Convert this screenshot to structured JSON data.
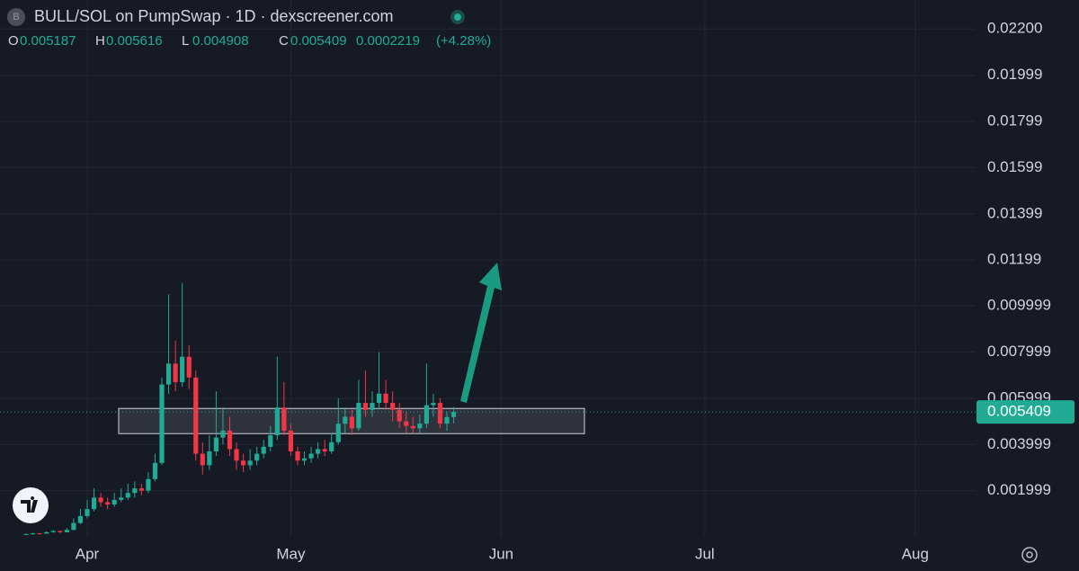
{
  "symbol_icon": "B",
  "title": "BULL/SOL on PumpSwap · 1D · dexscreener.com",
  "ohlc_letters": [
    "O",
    "H",
    "L",
    "C"
  ],
  "change": 0.0002219,
  "change_pct": {
    "value": 4.28,
    "label": "(+4.28%)"
  },
  "chart_data": {
    "type": "candlestick",
    "up_color": "#22ab94",
    "down_color": "#f23645",
    "grid": true,
    "x": [
      -9,
      -8,
      -7,
      -6,
      -5,
      -4,
      -3,
      -2,
      -1,
      0,
      1,
      2,
      3,
      4,
      5,
      6,
      7,
      8,
      9,
      10,
      11,
      12,
      13,
      14,
      15,
      16,
      17,
      18,
      19,
      20,
      21,
      22,
      23,
      24,
      25,
      26,
      27,
      28,
      29,
      30,
      31,
      32,
      33,
      34,
      35,
      36,
      37,
      38,
      39,
      40,
      41,
      42,
      43,
      44,
      45,
      46,
      47,
      48,
      49,
      50,
      51,
      52,
      53,
      54
    ],
    "open": [
      0.0001,
      0.00012,
      0.00015,
      0.00014,
      0.0002,
      0.00025,
      0.0002,
      0.0003,
      0.0006,
      0.0009,
      0.0012,
      0.0017,
      0.0015,
      0.0014,
      0.0016,
      0.0017,
      0.0019,
      0.0021,
      0.002,
      0.0025,
      0.0032,
      0.0066,
      0.0075,
      0.0067,
      0.0078,
      0.0069,
      0.0036,
      0.0031,
      0.0037,
      0.0043,
      0.0046,
      0.0038,
      0.0033,
      0.0031,
      0.0033,
      0.0036,
      0.0039,
      0.0044,
      0.0056,
      0.0046,
      0.0037,
      0.0033,
      0.0034,
      0.0036,
      0.0038,
      0.0037,
      0.0041,
      0.0049,
      0.0052,
      0.0047,
      0.0058,
      0.0055,
      0.0058,
      0.0062,
      0.0058,
      0.0055,
      0.005,
      0.0048,
      0.0047,
      0.0049,
      0.0057,
      0.0058,
      0.0049,
      0.005187
    ],
    "high": [
      0.00014,
      0.00018,
      0.00017,
      0.00024,
      0.0003,
      0.00028,
      0.00038,
      0.0008,
      0.0012,
      0.0016,
      0.0021,
      0.0019,
      0.0017,
      0.0019,
      0.0021,
      0.0023,
      0.0024,
      0.0023,
      0.0028,
      0.0036,
      0.0069,
      0.0105,
      0.0085,
      0.011,
      0.0083,
      0.0072,
      0.0041,
      0.0044,
      0.0063,
      0.0056,
      0.0052,
      0.0041,
      0.0036,
      0.0038,
      0.0039,
      0.0042,
      0.0048,
      0.0078,
      0.0067,
      0.0049,
      0.0039,
      0.0037,
      0.0039,
      0.0041,
      0.0042,
      0.0045,
      0.006,
      0.0056,
      0.0055,
      0.0068,
      0.0072,
      0.0063,
      0.008,
      0.0068,
      0.0063,
      0.0058,
      0.0054,
      0.0052,
      0.0053,
      0.0075,
      0.0062,
      0.006,
      0.0054,
      0.005616
    ],
    "low": [
      9e-05,
      0.0001,
      0.00012,
      0.00013,
      0.00018,
      0.00017,
      0.00019,
      0.00028,
      0.00055,
      0.0008,
      0.0011,
      0.0013,
      0.0012,
      0.0013,
      0.0015,
      0.0016,
      0.0017,
      0.0018,
      0.0019,
      0.0024,
      0.0031,
      0.0062,
      0.0063,
      0.0065,
      0.0064,
      0.0033,
      0.0027,
      0.0029,
      0.0035,
      0.004,
      0.0035,
      0.0029,
      0.0028,
      0.0029,
      0.0031,
      0.0034,
      0.0037,
      0.0042,
      0.0044,
      0.0035,
      0.0031,
      0.0031,
      0.0032,
      0.0034,
      0.0035,
      0.0036,
      0.004,
      0.0045,
      0.0044,
      0.0046,
      0.0052,
      0.0052,
      0.0056,
      0.0055,
      0.005,
      0.0047,
      0.0045,
      0.0045,
      0.0045,
      0.0047,
      0.0052,
      0.0047,
      0.0046,
      0.004908
    ],
    "close": [
      0.00012,
      0.00015,
      0.00014,
      0.0002,
      0.00025,
      0.0002,
      0.0003,
      0.0006,
      0.0009,
      0.0012,
      0.0017,
      0.0015,
      0.0014,
      0.0016,
      0.0017,
      0.0019,
      0.0021,
      0.002,
      0.0025,
      0.0032,
      0.0066,
      0.0075,
      0.0067,
      0.0078,
      0.0069,
      0.0036,
      0.0031,
      0.0037,
      0.0043,
      0.0046,
      0.0038,
      0.0033,
      0.0031,
      0.0033,
      0.0036,
      0.0039,
      0.0044,
      0.0056,
      0.0046,
      0.0037,
      0.0033,
      0.0034,
      0.0036,
      0.0038,
      0.0037,
      0.0041,
      0.0049,
      0.0052,
      0.0047,
      0.0058,
      0.0055,
      0.0058,
      0.0062,
      0.0058,
      0.0055,
      0.005,
      0.0048,
      0.0047,
      0.0049,
      0.0057,
      0.0058,
      0.0049,
      0.005187,
      0.005409
    ],
    "xlim": [
      -12.85,
      130.9
    ],
    "xticks": [
      {
        "value": 0,
        "label": "Apr"
      },
      {
        "value": 30,
        "label": "May"
      },
      {
        "value": 61,
        "label": "Jun"
      },
      {
        "value": 91,
        "label": "Jul"
      },
      {
        "value": 122,
        "label": "Aug"
      }
    ],
    "ylim": [
      0,
      0.02325
    ],
    "yticks": [
      0.001999,
      0.003999,
      0.005999,
      0.007999,
      0.009999,
      0.01199,
      0.01399,
      0.01599,
      0.01799,
      0.01999,
      {
        "value": 0.022,
        "label": "0.02200"
      }
    ],
    "zone": {
      "low": 0.00447,
      "high": 0.00556
    }
  }
}
